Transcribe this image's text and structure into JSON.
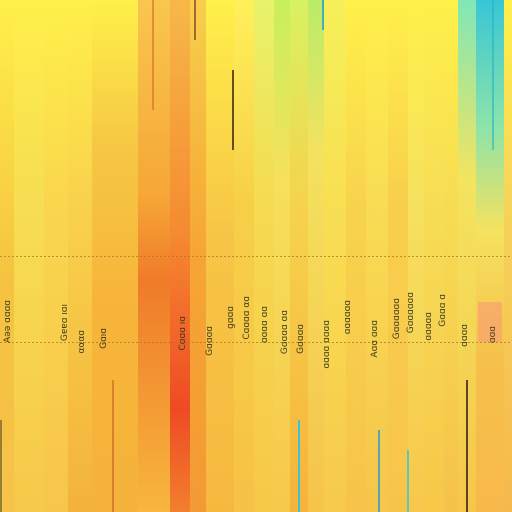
{
  "palette": {
    "lemon": "#fff04a",
    "yellow": "#f7d34a",
    "amber": "#f6a636",
    "orange": "#f2832b",
    "red": "#ef4a24",
    "lime": "#c7f05b",
    "teal": "#38c6d6",
    "mint": "#56e0b8"
  },
  "glyph_columns": [
    [
      "Aəə ɑɑɑɑ"
    ],
    [
      "Gɐɐɑ ıɑı"
    ],
    [
      "αααɑ"
    ],
    [
      "Gɑıɑ"
    ],
    [
      "Cɑɑɑ ıɑ"
    ],
    [
      "Gɑɑɑɑ"
    ],
    [
      "ɡɑɑɑ"
    ],
    [
      "Cɑɑɑɑ αɑ"
    ],
    [
      "ɑɑɑɑ ɑɑ"
    ],
    [
      "Gɑɑɑɑ ɑɑ"
    ],
    [
      "Gɑɑɑɑ"
    ],
    [
      "ɑɑɑɑ ɑɑɑɑ"
    ],
    [
      "ɑɑɑɑɑɑ"
    ],
    [
      "Aɑɑ ɑɑɑ"
    ],
    [
      "Gɑɑɑɑɑɑ"
    ],
    [
      "Gɑɑɑɑɑɑ"
    ],
    [
      "ɑɑɑɑɑ"
    ],
    [
      "Gɑɑɑ ɑ"
    ],
    [
      "ɑɑɑɑ"
    ],
    [
      "ɑɑɑ"
    ]
  ]
}
